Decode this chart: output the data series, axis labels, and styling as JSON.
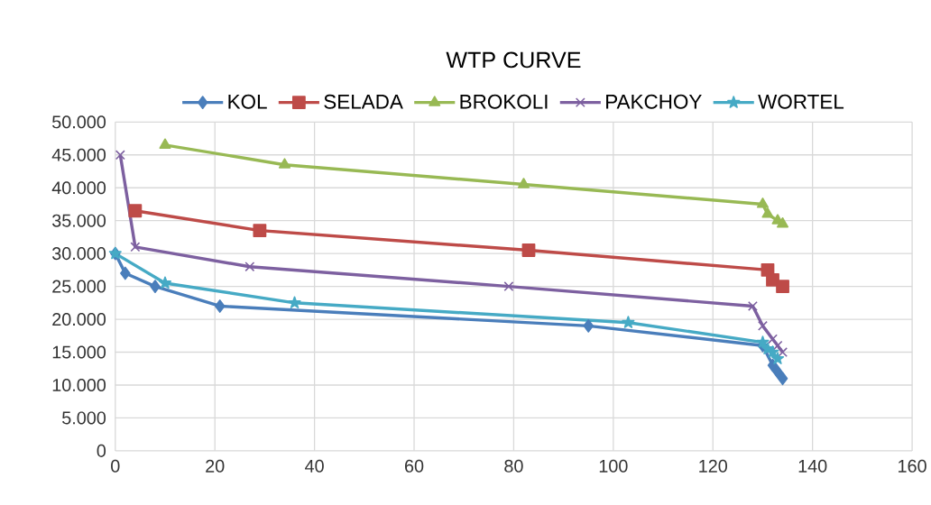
{
  "chart_data": {
    "type": "line",
    "title": "WTP CURVE",
    "xlim": [
      0,
      160
    ],
    "xticks": [
      0,
      20,
      40,
      60,
      80,
      100,
      120,
      140,
      160
    ],
    "ylim": [
      0,
      50000
    ],
    "yticks": [
      {
        "value": 0,
        "label": "0"
      },
      {
        "value": 5000,
        "label": "5.000"
      },
      {
        "value": 10000,
        "label": "10.000"
      },
      {
        "value": 15000,
        "label": "15.000"
      },
      {
        "value": 20000,
        "label": "20.000"
      },
      {
        "value": 25000,
        "label": "25.000"
      },
      {
        "value": 30000,
        "label": "30.000"
      },
      {
        "value": 35000,
        "label": "35.000"
      },
      {
        "value": 40000,
        "label": "40.000"
      },
      {
        "value": 45000,
        "label": "45.000"
      },
      {
        "value": 50000,
        "label": "50.000"
      }
    ],
    "grid": true,
    "legend": "top",
    "series": [
      {
        "name": "KOL",
        "color": "#4a7ebb",
        "marker": "diamond",
        "x": [
          0,
          2,
          8,
          21,
          95,
          130,
          132,
          133,
          134
        ],
        "values": [
          30000,
          27000,
          25000,
          22000,
          19000,
          16000,
          13000,
          12000,
          11000
        ]
      },
      {
        "name": "SELADA",
        "color": "#be4b48",
        "marker": "square",
        "x": [
          4,
          29,
          83,
          131,
          132,
          134
        ],
        "values": [
          36500,
          33500,
          30500,
          27500,
          26000,
          25000
        ]
      },
      {
        "name": "BROKOLI",
        "color": "#98b954",
        "marker": "triangle",
        "x": [
          10,
          34,
          82,
          130,
          131,
          133,
          134
        ],
        "values": [
          46500,
          43500,
          40500,
          37500,
          36000,
          35000,
          34500
        ]
      },
      {
        "name": "PAKCHOY",
        "color": "#7d60a0",
        "marker": "cross",
        "x": [
          1,
          4,
          27,
          79,
          128,
          130,
          132,
          133,
          134
        ],
        "values": [
          45000,
          31000,
          28000,
          25000,
          22000,
          19000,
          17000,
          16000,
          15000
        ]
      },
      {
        "name": "WORTEL",
        "color": "#46aac5",
        "marker": "star",
        "x": [
          0,
          10,
          36,
          103,
          130,
          131,
          132,
          133
        ],
        "values": [
          30000,
          25500,
          22500,
          19500,
          16500,
          15500,
          15000,
          14000
        ]
      }
    ]
  }
}
